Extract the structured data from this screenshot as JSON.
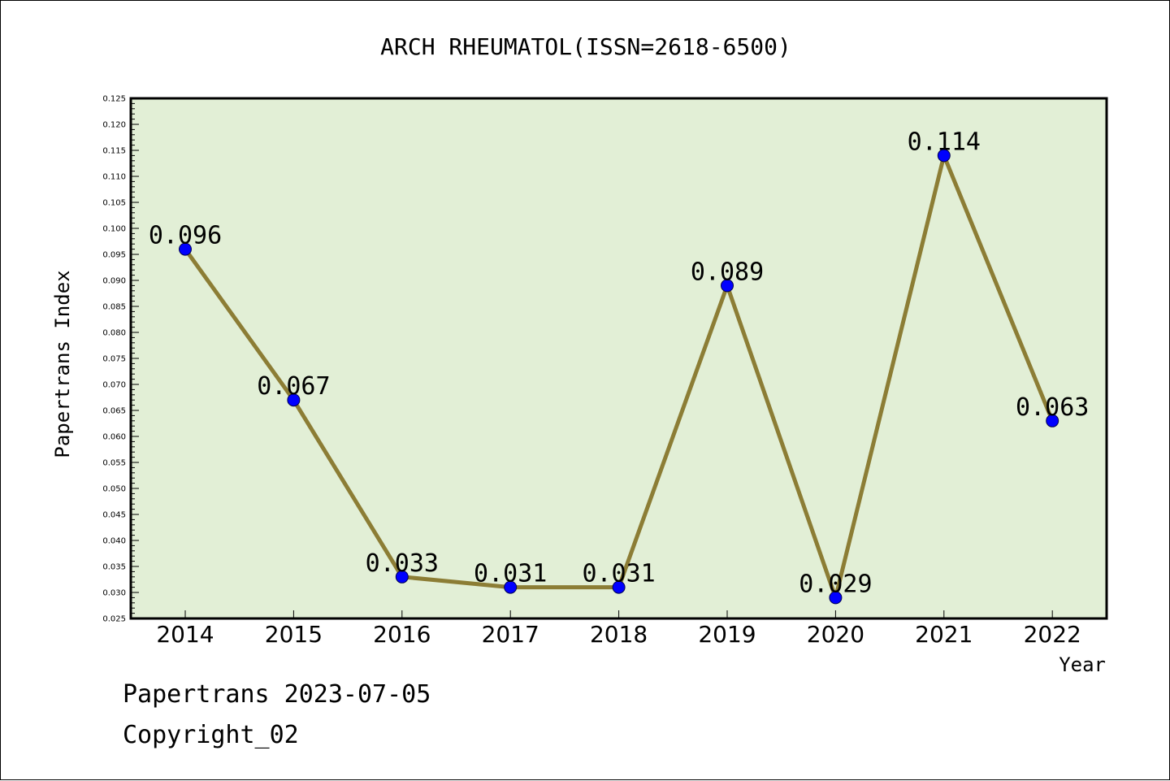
{
  "chart_data": {
    "type": "line",
    "title": "ARCH RHEUMATOL(ISSN=2618-6500)",
    "xlabel": "Year",
    "ylabel": "Papertrans Index",
    "categories": [
      "2014",
      "2015",
      "2016",
      "2017",
      "2018",
      "2019",
      "2020",
      "2021",
      "2022"
    ],
    "values": [
      0.096,
      0.067,
      0.033,
      0.031,
      0.031,
      0.089,
      0.029,
      0.114,
      0.063
    ],
    "data_labels": [
      "0.096",
      "0.067",
      "0.033",
      "0.031",
      "0.031",
      "0.089",
      "0.029",
      "0.114",
      "0.063"
    ],
    "ylim": [
      0.025,
      0.125
    ],
    "yticks": [
      "0.025",
      "0.030",
      "0.035",
      "0.040",
      "0.045",
      "0.050",
      "0.055",
      "0.060",
      "0.065",
      "0.070",
      "0.075",
      "0.080",
      "0.085",
      "0.090",
      "0.095",
      "0.100",
      "0.105",
      "0.110",
      "0.115",
      "0.120",
      "0.125"
    ],
    "grid": false,
    "legend": "none",
    "colors": {
      "plot_background": "#e2efd6",
      "line": "#8c7d35",
      "marker": "#0000ff"
    }
  },
  "footer": {
    "line1": "Papertrans 2023-07-05",
    "line2": "Copyright_02"
  }
}
